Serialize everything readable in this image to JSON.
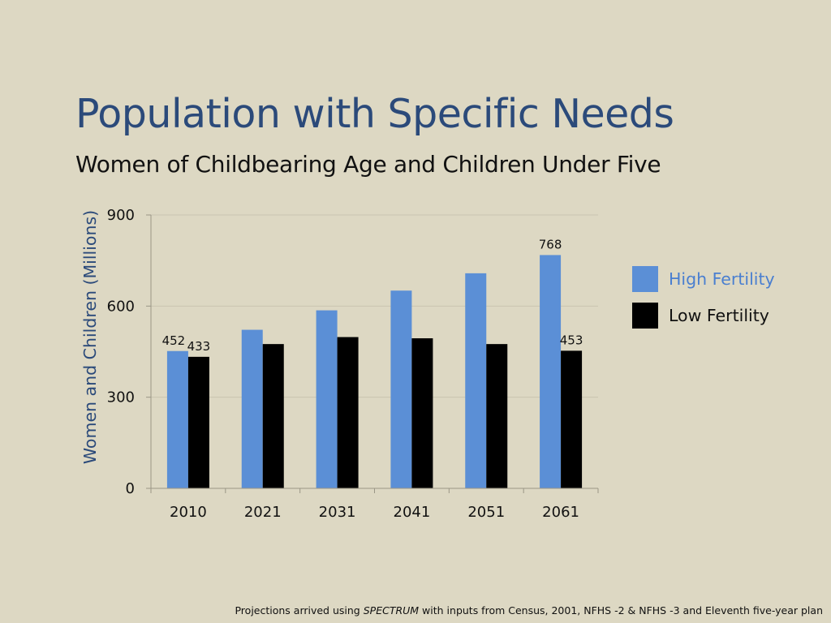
{
  "slide": {
    "title": "Population with Specific Needs",
    "subtitle": "Women of Childbearing Age and Children Under Five"
  },
  "footnote": {
    "before": "Projections arrived using ",
    "emphasis": "SPECTRUM",
    "after": " with inputs from Census, 2001, NFHS -2 & NFHS -3 and Eleventh five-year plan"
  },
  "chart_data": {
    "type": "bar",
    "title": "",
    "xlabel": "",
    "ylabel": "Women and Children (Millions)",
    "ylim": [
      0,
      900
    ],
    "yticks": [
      0,
      300,
      600,
      900
    ],
    "grid": true,
    "legend_position": "right",
    "categories": [
      "2010",
      "2021",
      "2031",
      "2041",
      "2051",
      "2061"
    ],
    "series": [
      {
        "name": "High Fertility",
        "color": "#5b8fd6",
        "legend_text_color": "#4a7fd0",
        "values": [
          452,
          522,
          586,
          651,
          708,
          768
        ],
        "data_labels": [
          "452",
          null,
          null,
          null,
          null,
          "768"
        ]
      },
      {
        "name": "Low Fertility",
        "color": "#000000",
        "legend_text_color": "#111111",
        "values": [
          433,
          475,
          498,
          494,
          475,
          453
        ],
        "data_labels": [
          "433",
          null,
          null,
          null,
          null,
          "453"
        ]
      }
    ],
    "axis_color": "#2b4a7a"
  }
}
